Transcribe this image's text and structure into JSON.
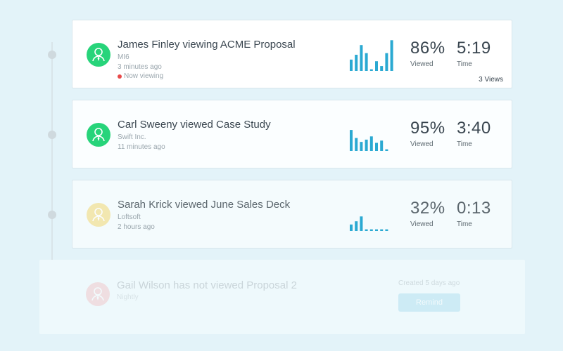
{
  "colors": {
    "bar": "#2aa9d2",
    "avatar_green": "#27d47a",
    "avatar_yellow": "#f1d772",
    "avatar_red": "#f29c9c",
    "now_viewing": "#e84a4a"
  },
  "activities": [
    {
      "title": "James Finley viewing ACME Proposal",
      "company": "MI6",
      "time_ago": "3 minutes ago",
      "status": "Now viewing",
      "viewed_pct": "86%",
      "viewed_label": "Viewed",
      "time": "5:19",
      "time_label": "Time",
      "views": "3 Views",
      "avatar_icon": "user-icon",
      "bar_levels": [
        0.35,
        0.5,
        0.8,
        0.55,
        0.05,
        0.3,
        0.15,
        0.55,
        0.95
      ]
    },
    {
      "title": "Carl Sweeny viewed Case Study",
      "company": "Swift Inc.",
      "time_ago": "11 minutes ago",
      "viewed_pct": "95%",
      "viewed_label": "Viewed",
      "time": "3:40",
      "time_label": "Time",
      "avatar_icon": "user-icon",
      "bar_levels": [
        0.65,
        0.4,
        0.28,
        0.35,
        0.45,
        0.25,
        0.32,
        0.05
      ]
    },
    {
      "title": "Sarah Krick viewed June Sales Deck",
      "company": "Loftsoft",
      "time_ago": "2 hours ago",
      "viewed_pct": "32%",
      "viewed_label": "Viewed",
      "time": "0:13",
      "time_label": "Time",
      "avatar_icon": "user-icon",
      "bar_levels": [
        0.2,
        0.3,
        0.45,
        0.05,
        0.05,
        0.05,
        0.05,
        0.05
      ]
    },
    {
      "title": "Gail Wilson has not viewed Proposal 2",
      "company": "Nightly",
      "created": "Created 5 days ago",
      "action_label": "Remind",
      "avatar_icon": "user-icon"
    }
  ]
}
